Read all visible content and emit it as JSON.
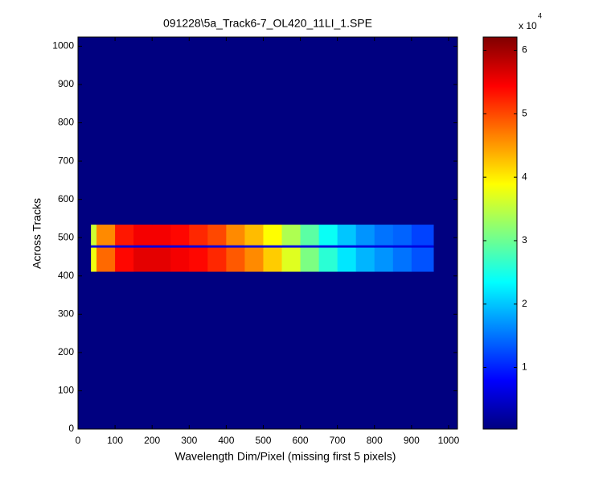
{
  "chart_data": {
    "type": "heatmap",
    "title": "091228\\5a_Track6-7_OL420_11LI_1.SPE",
    "x_label": "Wavelength Dim/Pixel (missing first 5 pixels)",
    "y_label": "Across Tracks",
    "xlim": [
      0,
      1024
    ],
    "ylim": [
      0,
      1024
    ],
    "xticks": [
      0,
      100,
      200,
      300,
      400,
      500,
      600,
      700,
      800,
      900,
      1000
    ],
    "yticks": [
      0,
      100,
      200,
      300,
      400,
      500,
      600,
      700,
      800,
      900,
      1000
    ],
    "x_edges": [
      0,
      35,
      50,
      100,
      150,
      200,
      250,
      300,
      350,
      400,
      450,
      500,
      550,
      600,
      650,
      700,
      750,
      800,
      850,
      900,
      960,
      1024
    ],
    "y_edges": [
      0,
      412,
      475,
      481,
      535,
      1024
    ],
    "z": [
      [
        0.03,
        0.03,
        0.03,
        0.03,
        0.03,
        0.03,
        0.03,
        0.03,
        0.03,
        0.03,
        0.03,
        0.03,
        0.03,
        0.03,
        0.03,
        0.03,
        0.03,
        0.03,
        0.03,
        0.03,
        0.03
      ],
      [
        0.03,
        3.8,
        4.8,
        5.4,
        5.6,
        5.6,
        5.5,
        5.4,
        5.2,
        4.9,
        4.6,
        4.2,
        3.7,
        3.1,
        2.6,
        2.2,
        1.9,
        1.7,
        1.5,
        1.3,
        0.03
      ],
      [
        0.03,
        0.6,
        0.6,
        0.6,
        0.6,
        0.6,
        0.6,
        0.6,
        0.6,
        0.6,
        0.6,
        0.6,
        0.6,
        0.6,
        0.6,
        0.6,
        0.6,
        0.6,
        0.6,
        0.6,
        0.03
      ],
      [
        0.03,
        3.6,
        4.6,
        5.3,
        5.5,
        5.5,
        5.4,
        5.2,
        5.0,
        4.6,
        4.3,
        3.9,
        3.4,
        2.9,
        2.4,
        2.0,
        1.7,
        1.5,
        1.4,
        1.2,
        0.03
      ],
      [
        0.03,
        0.03,
        0.03,
        0.03,
        0.03,
        0.03,
        0.03,
        0.03,
        0.03,
        0.03,
        0.03,
        0.03,
        0.03,
        0.03,
        0.03,
        0.03,
        0.03,
        0.03,
        0.03,
        0.03,
        0.03
      ]
    ],
    "colormap": "jet",
    "clim": [
      0.03,
      6.21
    ],
    "colorbar_ticks": [
      1,
      2,
      3,
      4,
      5,
      6
    ],
    "colorbar_multiplier": "x 10",
    "colorbar_exponent": "4"
  }
}
